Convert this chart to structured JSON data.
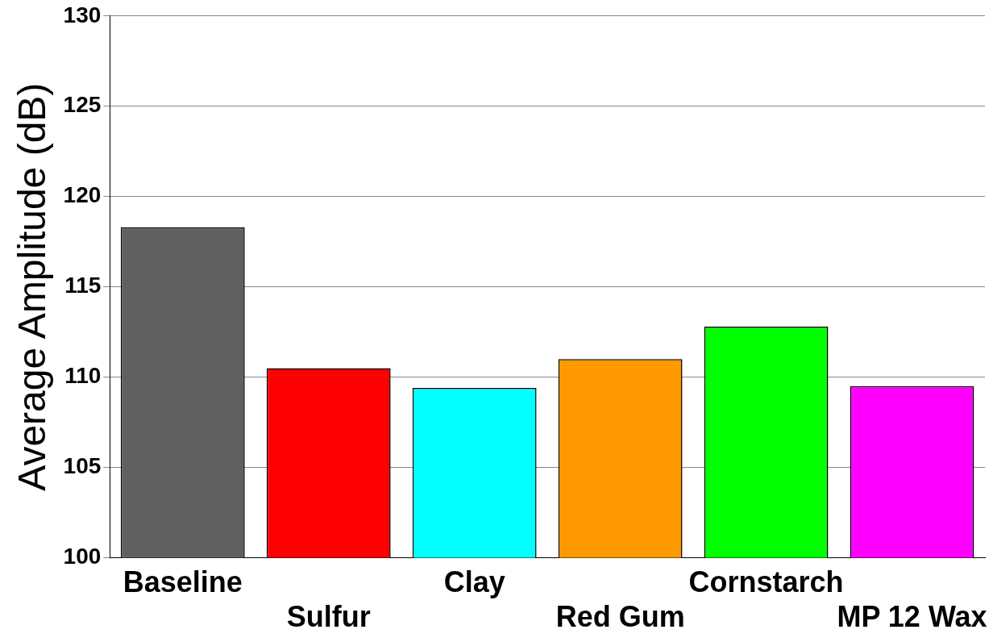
{
  "chart_data": {
    "type": "bar",
    "ylabel": "Average Amplitude (dB)",
    "categories": [
      "Baseline",
      "Sulfur",
      "Clay",
      "Red Gum",
      "Cornstarch",
      "MP 12 Wax"
    ],
    "values": [
      118.3,
      110.5,
      109.4,
      111,
      112.8,
      109.5
    ],
    "colors": [
      "#606060",
      "#ff0000",
      "#00ffff",
      "#ff9900",
      "#00ff00",
      "#ff00ff"
    ],
    "ylim": [
      100,
      130
    ],
    "yticks": [
      100,
      105,
      110,
      115,
      120,
      125,
      130
    ],
    "grid": "y",
    "legend": false
  }
}
